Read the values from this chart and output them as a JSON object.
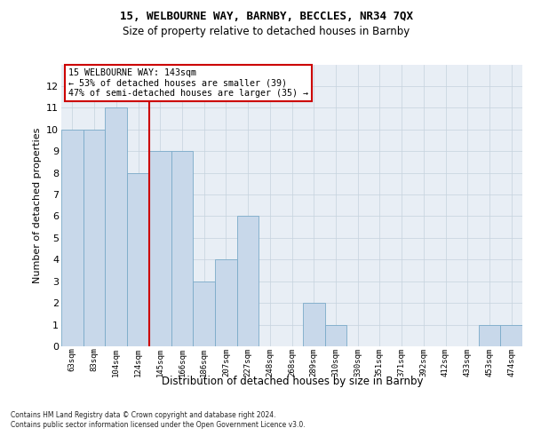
{
  "title1": "15, WELBOURNE WAY, BARNBY, BECCLES, NR34 7QX",
  "title2": "Size of property relative to detached houses in Barnby",
  "xlabel": "Distribution of detached houses by size in Barnby",
  "ylabel": "Number of detached properties",
  "footnote1": "Contains HM Land Registry data © Crown copyright and database right 2024.",
  "footnote2": "Contains public sector information licensed under the Open Government Licence v3.0.",
  "categories": [
    "63sqm",
    "83sqm",
    "104sqm",
    "124sqm",
    "145sqm",
    "166sqm",
    "186sqm",
    "207sqm",
    "227sqm",
    "248sqm",
    "268sqm",
    "289sqm",
    "310sqm",
    "330sqm",
    "351sqm",
    "371sqm",
    "392sqm",
    "412sqm",
    "433sqm",
    "453sqm",
    "474sqm"
  ],
  "values": [
    10,
    10,
    11,
    8,
    9,
    9,
    3,
    4,
    6,
    0,
    0,
    2,
    1,
    0,
    0,
    0,
    0,
    0,
    0,
    1,
    1
  ],
  "bar_color": "#c8d8ea",
  "bar_edge_color": "#7aaac8",
  "highlight_index": 4,
  "red_line_color": "#cc0000",
  "annotation_text": "15 WELBOURNE WAY: 143sqm\n← 53% of detached houses are smaller (39)\n47% of semi-detached houses are larger (35) →",
  "annotation_box_color": "#ffffff",
  "annotation_box_edge": "#cc0000",
  "ylim": [
    0,
    13
  ],
  "yticks": [
    0,
    1,
    2,
    3,
    4,
    5,
    6,
    7,
    8,
    9,
    10,
    11,
    12,
    13
  ],
  "bg_color": "#e8eef5",
  "grid_color": "#c5d2de"
}
